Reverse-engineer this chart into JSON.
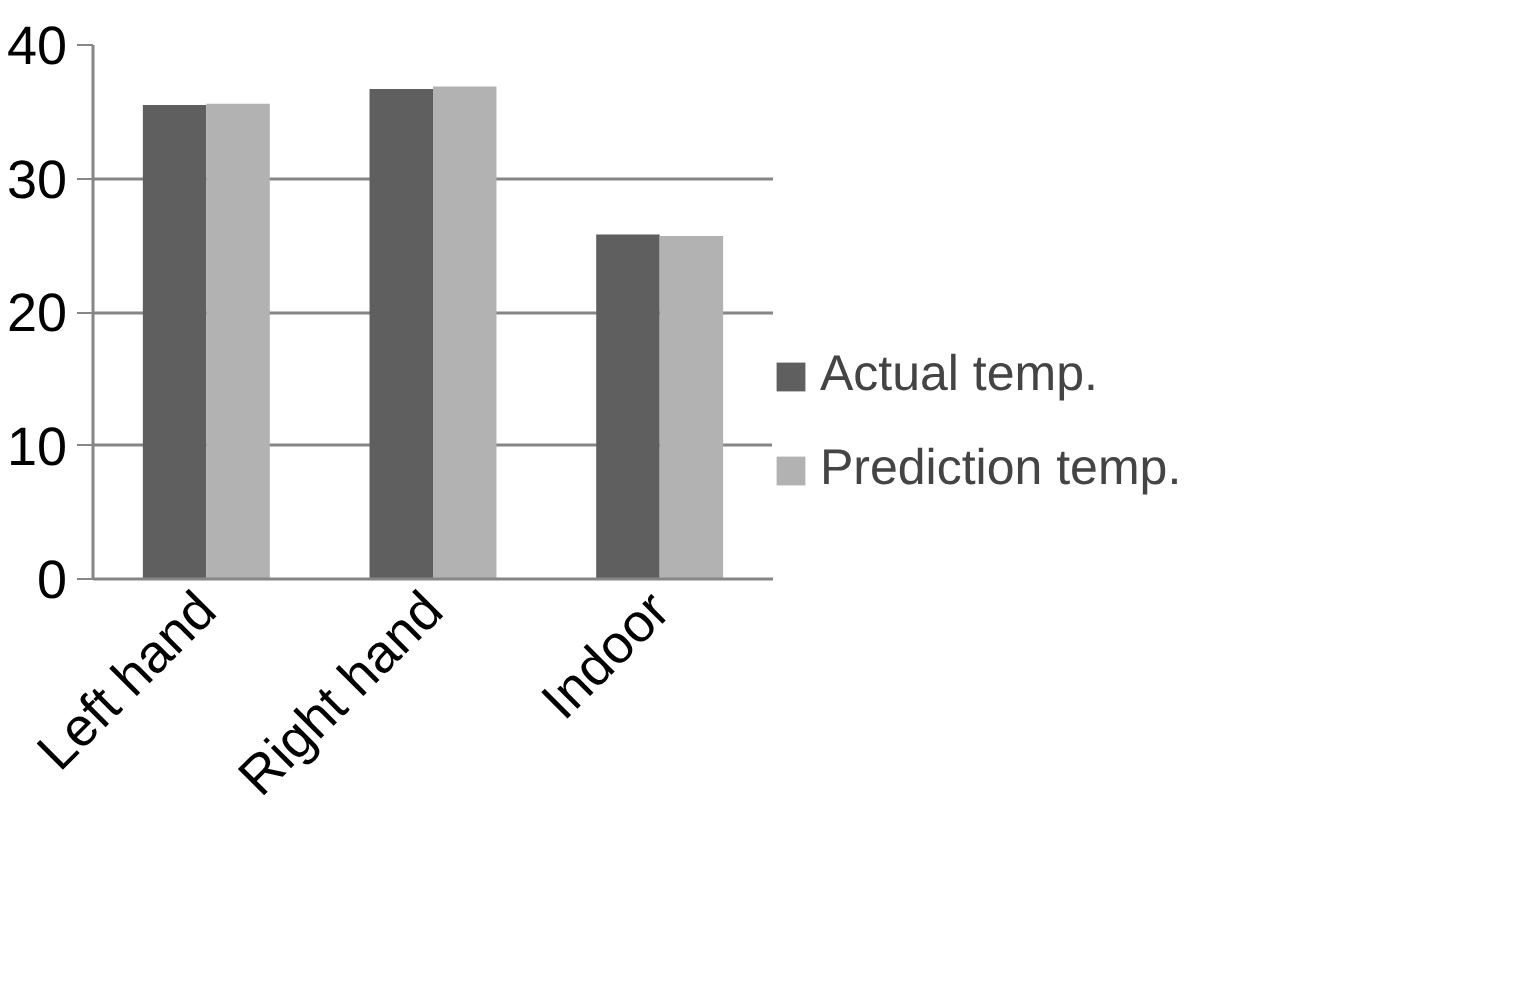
{
  "chart_data": {
    "type": "bar",
    "categories": [
      "Left hand",
      "Right hand",
      "Indoor"
    ],
    "series": [
      {
        "name": "Actual temp.",
        "color": "#5f5f5f",
        "values": [
          35.5,
          36.7,
          25.8
        ]
      },
      {
        "name": "Prediction temp.",
        "color": "#b2b2b2",
        "values": [
          35.6,
          36.9,
          25.7
        ]
      }
    ],
    "ylim": [
      0,
      40
    ],
    "yticks": [
      0,
      10,
      20,
      30,
      40
    ],
    "grid": "y",
    "legend": "right"
  }
}
